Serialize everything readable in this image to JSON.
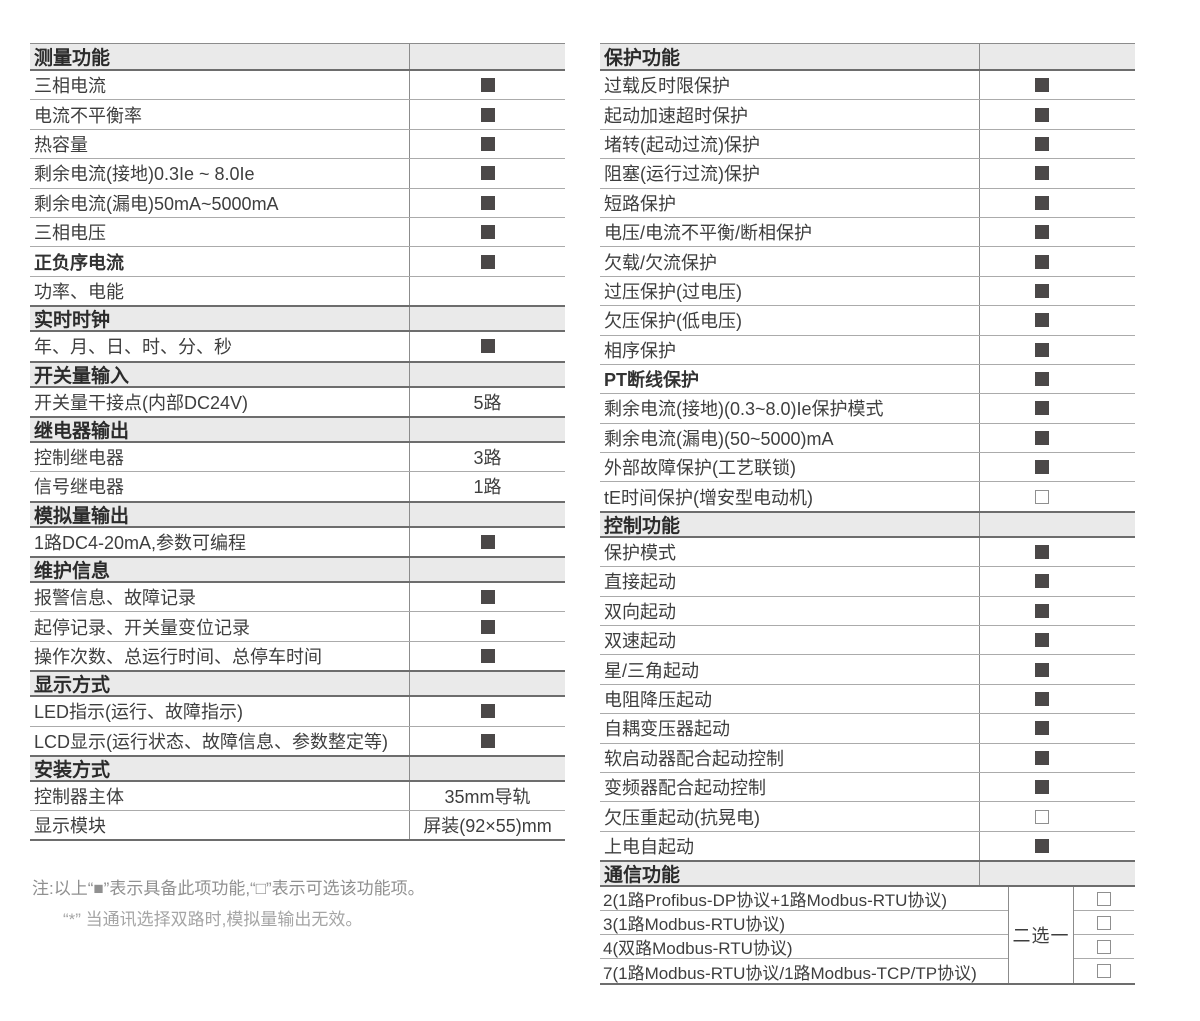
{
  "colors": {
    "header_bg": "#eaeaea",
    "border_dark": "#6d6d6d",
    "border_mid": "#8c8c8c",
    "border_light": "#ababab",
    "text": "#3e3e3e",
    "header_text": "#2b2b2b",
    "filled_square": "#4b4848",
    "open_square_border": "#8f8f8f",
    "note_text": "#909090",
    "note_text_light": "#a5a5a5"
  },
  "symbols": {
    "filled": "■",
    "open": "□"
  },
  "left_table": {
    "rows": [
      {
        "type": "header",
        "label": "测量功能"
      },
      {
        "type": "item",
        "label": "三相电流",
        "mark": "filled"
      },
      {
        "type": "item",
        "label": "电流不平衡率",
        "mark": "filled"
      },
      {
        "type": "item",
        "label": "热容量",
        "mark": "filled"
      },
      {
        "type": "item",
        "label": "剩余电流(接地)0.3Ie ~ 8.0Ie",
        "mark": "filled"
      },
      {
        "type": "item",
        "label": "剩余电流(漏电)50mA~5000mA",
        "mark": "filled"
      },
      {
        "type": "item",
        "label": "三相电压",
        "mark": "filled"
      },
      {
        "type": "item",
        "label": "正负序电流",
        "mark": "filled",
        "bold": true
      },
      {
        "type": "item",
        "label": "功率、电能"
      },
      {
        "type": "header",
        "label": "实时时钟"
      },
      {
        "type": "item",
        "label": "年、月、日、时、分、秒",
        "mark": "filled"
      },
      {
        "type": "header",
        "label": "开关量输入"
      },
      {
        "type": "item",
        "label": "开关量干接点(内部DC24V)",
        "value": "5路"
      },
      {
        "type": "header",
        "label": "继电器输出"
      },
      {
        "type": "item",
        "label": "控制继电器",
        "value": "3路"
      },
      {
        "type": "item",
        "label": "信号继电器",
        "value": "1路"
      },
      {
        "type": "header",
        "label": "模拟量输出"
      },
      {
        "type": "item",
        "label": "1路DC4-20mA,参数可编程",
        "mark": "filled"
      },
      {
        "type": "header",
        "label": "维护信息"
      },
      {
        "type": "item",
        "label": "报警信息、故障记录",
        "mark": "filled"
      },
      {
        "type": "item",
        "label": "起停记录、开关量变位记录",
        "mark": "filled"
      },
      {
        "type": "item",
        "label": "操作次数、总运行时间、总停车时间",
        "mark": "filled"
      },
      {
        "type": "header",
        "label": "显示方式"
      },
      {
        "type": "item",
        "label": "LED指示(运行、故障指示)",
        "mark": "filled"
      },
      {
        "type": "item",
        "label": "LCD显示(运行状态、故障信息、参数整定等)",
        "mark": "filled"
      },
      {
        "type": "header",
        "label": "安装方式"
      },
      {
        "type": "item",
        "label": "控制器主体",
        "value": "35mm导轨"
      },
      {
        "type": "item",
        "label": "显示模块",
        "value": "屏装(92×55)mm"
      }
    ]
  },
  "right_table": {
    "rows": [
      {
        "type": "header",
        "label": "保护功能"
      },
      {
        "type": "item",
        "label": "过载反时限保护",
        "mark": "filled"
      },
      {
        "type": "item",
        "label": "起动加速超时保护",
        "mark": "filled"
      },
      {
        "type": "item",
        "label": "堵转(起动过流)保护",
        "mark": "filled"
      },
      {
        "type": "item",
        "label": "阻塞(运行过流)保护",
        "mark": "filled"
      },
      {
        "type": "item",
        "label": "短路保护",
        "mark": "filled"
      },
      {
        "type": "item",
        "label": "电压/电流不平衡/断相保护",
        "mark": "filled"
      },
      {
        "type": "item",
        "label": "欠载/欠流保护",
        "mark": "filled"
      },
      {
        "type": "item",
        "label": "过压保护(过电压)",
        "mark": "filled"
      },
      {
        "type": "item",
        "label": "欠压保护(低电压)",
        "mark": "filled"
      },
      {
        "type": "item",
        "label": "相序保护",
        "mark": "filled"
      },
      {
        "type": "item",
        "label": "PT断线保护",
        "mark": "filled",
        "bold": true
      },
      {
        "type": "item",
        "label": "剩余电流(接地)(0.3~8.0)Ie保护模式",
        "mark": "filled"
      },
      {
        "type": "item",
        "label": "剩余电流(漏电)(50~5000)mA",
        "mark": "filled"
      },
      {
        "type": "item",
        "label": "外部故障保护(工艺联锁)",
        "mark": "filled"
      },
      {
        "type": "item",
        "label": "tE时间保护(增安型电动机)",
        "mark": "open"
      },
      {
        "type": "header",
        "label": "控制功能"
      },
      {
        "type": "item",
        "label": "保护模式",
        "mark": "filled"
      },
      {
        "type": "item",
        "label": "直接起动",
        "mark": "filled"
      },
      {
        "type": "item",
        "label": "双向起动",
        "mark": "filled"
      },
      {
        "type": "item",
        "label": "双速起动",
        "mark": "filled"
      },
      {
        "type": "item",
        "label": "星/三角起动",
        "mark": "filled"
      },
      {
        "type": "item",
        "label": "电阻降压起动",
        "mark": "filled"
      },
      {
        "type": "item",
        "label": "自耦变压器起动",
        "mark": "filled"
      },
      {
        "type": "item",
        "label": "软启动器配合起动控制",
        "mark": "filled"
      },
      {
        "type": "item",
        "label": "变频器配合起动控制",
        "mark": "filled"
      },
      {
        "type": "item",
        "label": "欠压重起动(抗晃电)",
        "mark": "open"
      },
      {
        "type": "item",
        "label": "上电自起动",
        "mark": "filled"
      }
    ],
    "comm_header": "通信功能",
    "comm": {
      "selector": "二选一",
      "options": [
        {
          "label": "2(1路Profibus-DP协议+1路Modbus-RTU协议)",
          "mark": "open"
        },
        {
          "label": "3(1路Modbus-RTU协议)",
          "mark": "open"
        },
        {
          "label": "4(双路Modbus-RTU协议)",
          "mark": "open"
        },
        {
          "label": "7(1路Modbus-RTU协议/1路Modbus-TCP/TP协议)",
          "mark": "open"
        }
      ]
    }
  },
  "notes": {
    "line1": "注:以上“■”表示具备此项功能,“□”表示可选该功能项。",
    "line2": "“*” 当通讯选择双路时,模拟量输出无效。"
  }
}
